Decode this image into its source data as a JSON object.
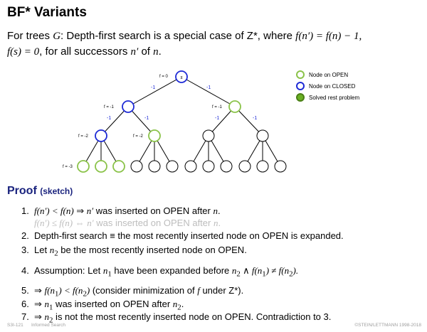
{
  "slide": {
    "title": "BF* Variants",
    "intro": {
      "p1": "For trees ",
      "p2": "G",
      "p3": ": Depth-first search is a special case of Z*, where ",
      "p4": "f(n′) = f(n) − 1,",
      "p5": "f(s) = 0",
      "p6": ", for all successors ",
      "p7": "n′",
      "p8": " of ",
      "p9": "n",
      "p10": "."
    }
  },
  "tree": {
    "labels": {
      "l0": "f = 0",
      "l1a": "f = -1",
      "l1b": "f = -1",
      "l2a": "f = -2",
      "l2b": "f = -2",
      "l3": "f = -3"
    },
    "root_label": "s",
    "edge_label": "-1"
  },
  "legend": [
    {
      "label": "Node on OPEN",
      "color": "#8bc34a",
      "fill": "#ffffff"
    },
    {
      "label": "Node on CLOSED",
      "color": "#1e2bd6",
      "fill": "#ffffff"
    },
    {
      "label": "Solved rest problem",
      "color": "#4a7f16",
      "fill": "#6ab023"
    }
  ],
  "proof": {
    "heading": "Proof",
    "sub": "(sketch)",
    "items": [
      {
        "num": "1.",
        "a": "f(n′) < f(n)",
        "b": " ⇒ ",
        "c": "n′",
        "d": " was inserted on OPEN after ",
        "e": "n",
        "f": "."
      },
      {
        "a": "f(n′) ≤ f(n)",
        "b": " ⇔ ",
        "c": "n′",
        "d": " was inserted on OPEN after ",
        "e": "n",
        "f": "."
      },
      {
        "num": "2.",
        "a": "Depth-first search ",
        "b": "≡",
        "c": " the most recently inserted node on OPEN is expanded."
      },
      {
        "num": "3.",
        "a": "Let ",
        "b": "n",
        "bs": "2",
        "c": " be the most recently inserted node on OPEN."
      },
      {
        "num": "4.",
        "a": "Assumption: Let ",
        "b": "n",
        "bs": "1",
        "c": " have been expanded before ",
        "d": "n",
        "ds": "2",
        "e": " ∧ ",
        "f": "f(n",
        "fs": "1",
        "g": ") ≠ f(n",
        "gs": "2",
        "h": ")."
      },
      {
        "num": "5.",
        "a": "⇒ ",
        "b": "f(n",
        "bs": "1",
        "c": ") < f(n",
        "cs": "2",
        "d": ")",
        "e": " (consider minimization of ",
        "f": "f",
        "g": " under Z*)."
      },
      {
        "num": "6.",
        "a": "⇒ ",
        "b": "n",
        "bs": "1",
        "c": " was inserted on OPEN after ",
        "d": "n",
        "ds": "2",
        "e": "."
      },
      {
        "num": "7.",
        "a": "⇒ ",
        "b": "n",
        "bs": "2",
        "c": " is not the most recently inserted node on OPEN. Contradiction to 3."
      }
    ]
  },
  "footer": {
    "left": "S3I-121",
    "section": "Informed Search",
    "right": "©STEIN/LETTMANN 1998-2018"
  },
  "colors": {
    "open": "#8bc34a",
    "closed": "#1e2bd6",
    "solved": "#6ab023",
    "heading": "#1a237e",
    "edge_label": "#1e2bd6"
  }
}
